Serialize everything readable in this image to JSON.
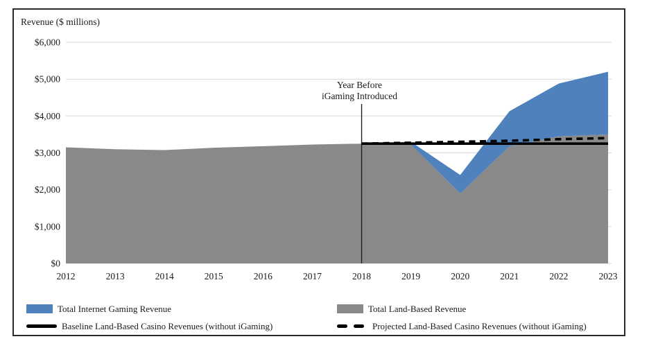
{
  "axis_title_note": "shown top-left above y axis",
  "annotation": {
    "lines": [
      "Year Before",
      "iGaming Introduced"
    ],
    "at_category": "2018"
  },
  "colors": {
    "internet_blue": "#4F81BD",
    "land_gray": "#898989",
    "line_black": "#000000",
    "grid_gray": "#D9D9D9",
    "text": "#1a1a1a",
    "frame_border": "#2a2a2a"
  },
  "legend": {
    "items": [
      {
        "label": "Total Internet Gaming Revenue",
        "swatch": "area",
        "color": "#4F81BD"
      },
      {
        "label": "Baseline Land-Based Casino Revenues (without iGaming)",
        "swatch": "line-solid",
        "color": "#000000"
      },
      {
        "label": "Total Land-Based Revenue",
        "swatch": "area",
        "color": "#898989"
      },
      {
        "label": "Projected Land-Based Casino Revenues (without iGaming)",
        "swatch": "line-dashed",
        "color": "#000000"
      }
    ]
  },
  "chart_data": {
    "type": "area",
    "title": "",
    "ylabel": "Revenue ($ millions)",
    "xlabel": "",
    "categories": [
      "2012",
      "2013",
      "2014",
      "2015",
      "2016",
      "2017",
      "2018",
      "2019",
      "2020",
      "2021",
      "2022",
      "2023"
    ],
    "ylim": [
      0,
      6000
    ],
    "y_ticks": [
      0,
      1000,
      2000,
      3000,
      4000,
      5000,
      6000
    ],
    "y_tick_labels": [
      "$0",
      "$1,000",
      "$2,000",
      "$3,000",
      "$4,000",
      "$5,000",
      "$6,000"
    ],
    "grid": "horizontal",
    "legend_position": "bottom",
    "series": [
      {
        "name": "Total Land-Based Revenue",
        "kind": "area",
        "stack_order": 0,
        "color": "#898989",
        "values": [
          3150,
          3100,
          3075,
          3140,
          3180,
          3225,
          3250,
          3225,
          1900,
          3180,
          3450,
          3500
        ]
      },
      {
        "name": "Total Internet Gaming Revenue",
        "kind": "area",
        "stack_order": 1,
        "color": "#4F81BD",
        "values": [
          0,
          0,
          0,
          0,
          0,
          0,
          0,
          75,
          500,
          950,
          1430,
          1700
        ]
      },
      {
        "name": "Baseline Land-Based Casino Revenues (without iGaming)",
        "kind": "line",
        "style": "solid",
        "color": "#000000",
        "x_start": "2018",
        "values": [
          3250,
          3250,
          3250,
          3250,
          3250,
          3250
        ]
      },
      {
        "name": "Projected Land-Based Casino Revenues (without iGaming)",
        "kind": "line",
        "style": "dashed",
        "color": "#000000",
        "x_start": "2018",
        "values": [
          3250,
          3275,
          3300,
          3330,
          3370,
          3400
        ]
      }
    ],
    "annotation": {
      "lines": [
        "Year Before",
        "iGaming Introduced"
      ],
      "at_category": "2018"
    }
  }
}
